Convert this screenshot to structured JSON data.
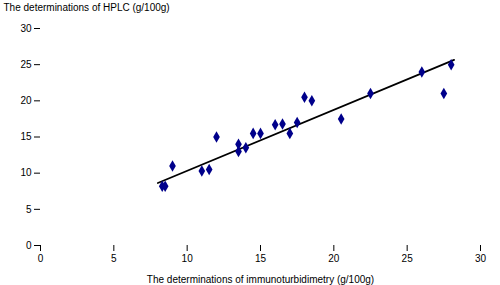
{
  "chart_data": {
    "type": "scatter",
    "xlabel": "The determinations of immunoturbidimetry (g/100g)",
    "ylabel": "The determinations of HPLC (g/100g)",
    "series": [
      {
        "type": "scatter",
        "color": "#00008B",
        "marker": "diamond",
        "x": [
          8.3,
          8.5,
          9.0,
          11.0,
          11.5,
          12.0,
          13.5,
          13.5,
          14.0,
          14.5,
          15.0,
          16.0,
          16.5,
          17.0,
          17.5,
          18.0,
          18.5,
          20.5,
          22.5,
          26.0,
          27.5,
          28.0
        ],
        "values": [
          8.2,
          8.2,
          11.0,
          10.3,
          10.5,
          15.0,
          13.0,
          14.0,
          13.5,
          15.5,
          15.5,
          16.7,
          16.8,
          15.5,
          17.0,
          20.5,
          20.0,
          17.5,
          21.0,
          24.0,
          21.0,
          25.0
        ]
      },
      {
        "type": "line",
        "color": "#000000",
        "line_style": "solid",
        "x": [
          8.0,
          28.2
        ],
        "values": [
          8.637,
          25.6656
        ]
      }
    ],
    "xlim": [
      0,
      30
    ],
    "ylim": [
      0,
      30
    ],
    "xticks": [
      0,
      5,
      10,
      15,
      20,
      25,
      30
    ],
    "yticks": [
      0,
      5,
      10,
      15,
      20,
      25,
      30
    ],
    "grid": false
  }
}
